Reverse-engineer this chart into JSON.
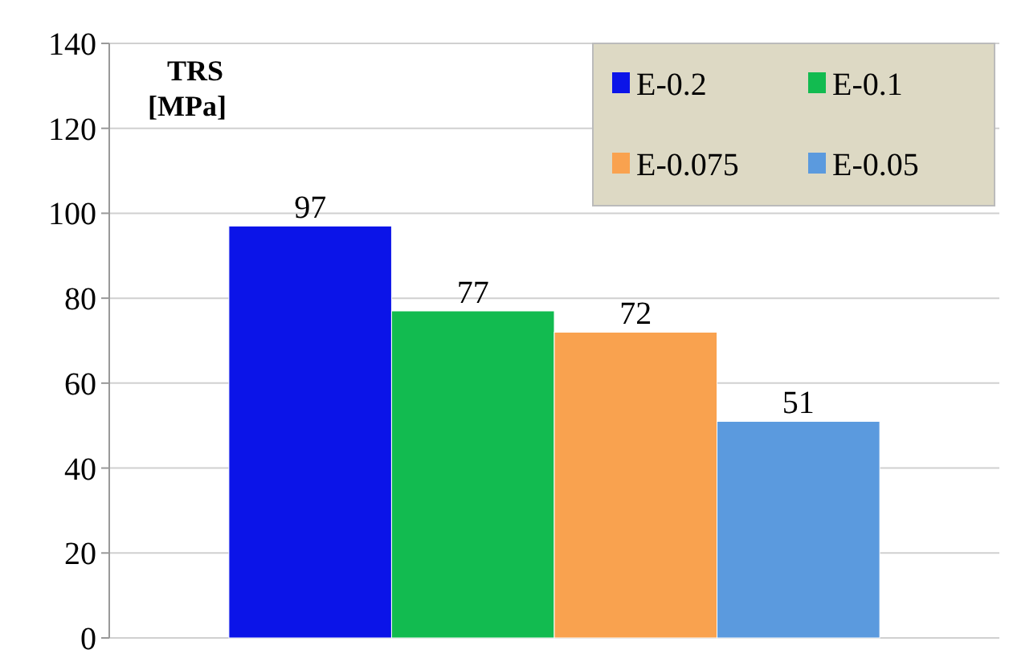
{
  "chart_data": {
    "type": "bar",
    "ylabel": "TRS [MPa]",
    "categories": [
      null
    ],
    "series": [
      {
        "name": "E-0.2",
        "color": "#0b14e8",
        "values": [
          97
        ]
      },
      {
        "name": "E-0.1",
        "color": "#12bb50",
        "values": [
          77
        ]
      },
      {
        "name": "E-0.075",
        "color": "#f9a24f",
        "values": [
          72
        ]
      },
      {
        "name": "E-0.05",
        "color": "#5b9ade",
        "values": [
          51
        ]
      }
    ],
    "ylim": [
      0,
      140
    ],
    "yticks": [
      0,
      20,
      40,
      60,
      80,
      100,
      120,
      140
    ],
    "grid": "y",
    "legend": "top right",
    "data_labels": true
  }
}
